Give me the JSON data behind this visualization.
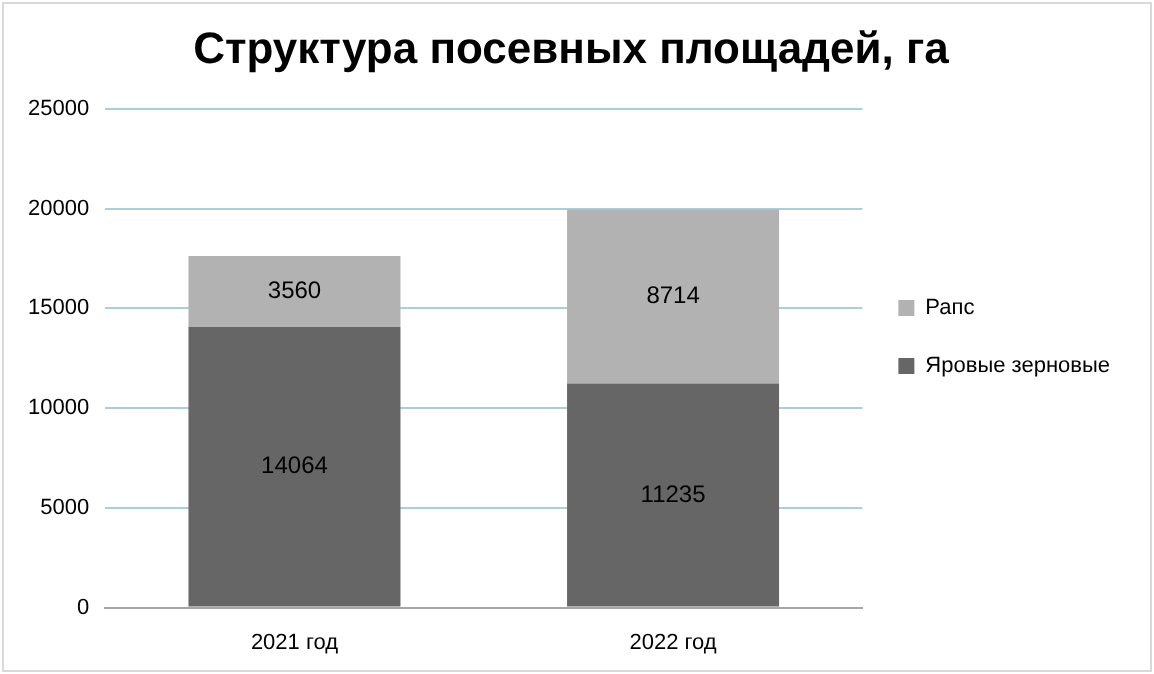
{
  "chart_data": {
    "type": "bar",
    "title": "Структура посевных площадей, га",
    "categories": [
      "2021 год",
      "2022 год"
    ],
    "stacked": true,
    "series": [
      {
        "name": "Яровые зерновые",
        "color": "#666666",
        "values": [
          14064,
          11235
        ]
      },
      {
        "name": "Рапс",
        "color": "#b2b2b2",
        "values": [
          3560,
          8714
        ]
      }
    ],
    "ylim": [
      0,
      25000
    ],
    "yticks": [
      0,
      5000,
      10000,
      15000,
      20000,
      25000
    ],
    "grid": "y",
    "legend": "right",
    "data_labels": true
  }
}
